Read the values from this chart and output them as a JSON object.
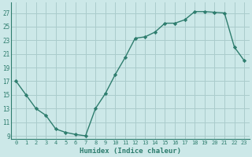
{
  "x": [
    0,
    1,
    2,
    3,
    4,
    5,
    6,
    7,
    8,
    9,
    10,
    11,
    12,
    13,
    14,
    15,
    16,
    17,
    18,
    19,
    20,
    21,
    22,
    23
  ],
  "y": [
    17,
    15,
    13,
    12,
    10,
    9.5,
    9.2,
    9,
    13,
    15.2,
    18,
    20.5,
    23.3,
    23.5,
    24.2,
    25.5,
    25.5,
    26,
    27.2,
    27.2,
    27.1,
    27.0,
    22,
    20
  ],
  "xlabel": "Humidex (Indice chaleur)",
  "line_color": "#2e7d6e",
  "marker_color": "#2e7d6e",
  "bg_color": "#cce8e8",
  "grid_color": "#aacccc",
  "ylim": [
    8.5,
    28.5
  ],
  "xlim": [
    -0.5,
    23.5
  ],
  "yticks": [
    9,
    11,
    13,
    15,
    17,
    19,
    21,
    23,
    25,
    27
  ],
  "xticks": [
    0,
    1,
    2,
    3,
    4,
    5,
    6,
    7,
    8,
    9,
    10,
    11,
    12,
    13,
    14,
    15,
    16,
    17,
    18,
    19,
    20,
    21,
    22,
    23
  ]
}
